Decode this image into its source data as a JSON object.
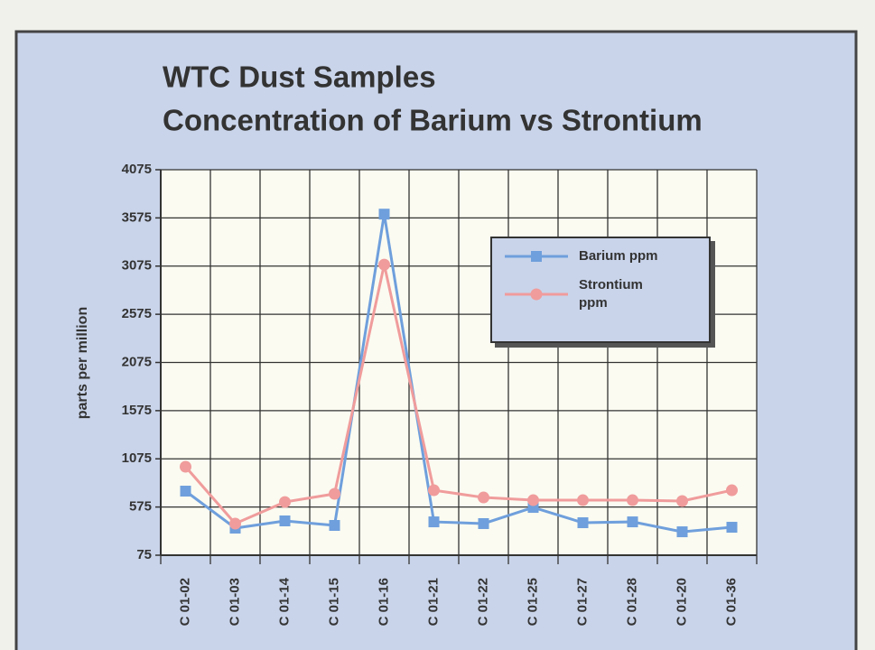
{
  "chart_data": {
    "type": "line",
    "title": "WTC Dust Samples",
    "subtitle": "Concentration of Barium vs Strontium",
    "y_label": "parts per million",
    "categories": [
      "C 01-02",
      "C 01-03",
      "C 01-14",
      "C 01-15",
      "C 01-16",
      "C 01-21",
      "C 01-22",
      "C 01-25",
      "C 01-27",
      "C 01-28",
      "C 01-20",
      "C 01-36"
    ],
    "series": [
      {
        "name": "Barium ppm",
        "color": "#6f9fdc",
        "marker": "square",
        "values": [
          740,
          356,
          431,
          384,
          3614,
          421,
          403,
          571,
          412,
          421,
          318,
          365
        ]
      },
      {
        "name": "Strontium ppm",
        "color": "#f09c9c",
        "marker": "circle",
        "values": [
          993,
          403,
          627,
          712,
          3090,
          749,
          674,
          646,
          646,
          646,
          637,
          749
        ]
      }
    ],
    "ylim": [
      75,
      4075
    ],
    "yticks": [
      75,
      575,
      1075,
      1575,
      2075,
      2575,
      3075,
      3575,
      4075
    ],
    "grid": true,
    "legend": "upper-right"
  }
}
